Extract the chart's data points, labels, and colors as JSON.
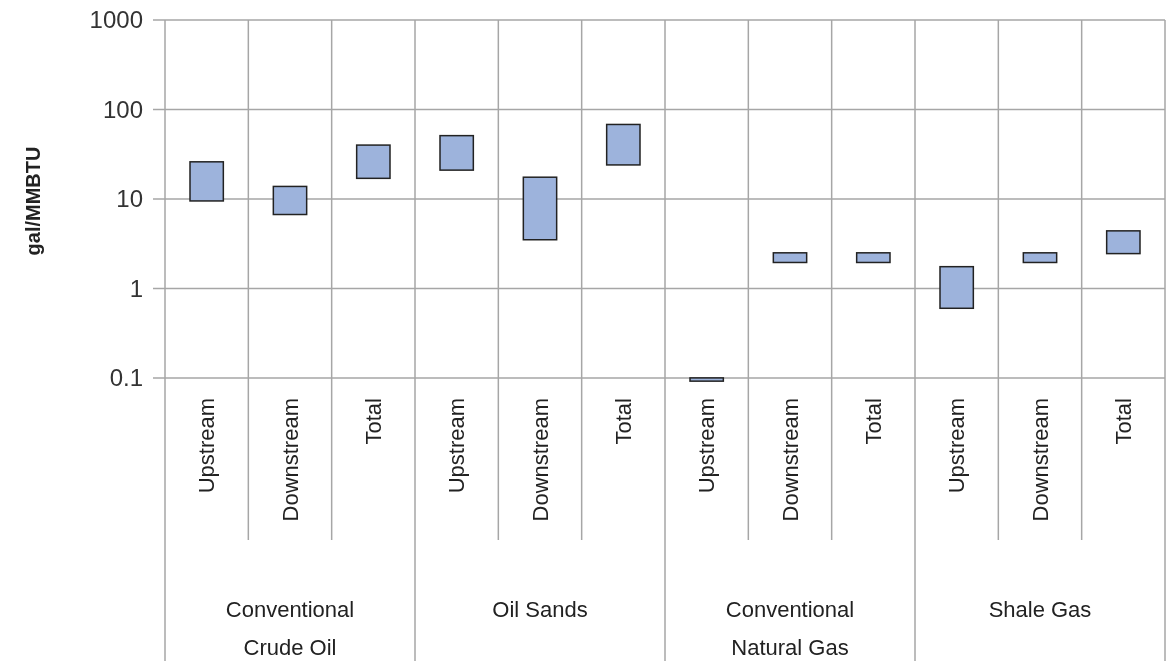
{
  "chart_data": {
    "type": "bar",
    "ylabel": "gal/MMBTU",
    "categories": [
      "Upstream",
      "Downstream",
      "Total",
      "Upstream",
      "Downstream",
      "Total",
      "Upstream",
      "Downstream",
      "Total",
      "Upstream",
      "Downstream",
      "Total"
    ],
    "base": [
      9.5,
      6.7,
      17,
      21,
      3.5,
      24,
      0.092,
      1.95,
      1.95,
      0.6,
      1.95,
      2.45
    ],
    "values": [
      16.5,
      7.1,
      23,
      30,
      14,
      44,
      0.008,
      0.55,
      0.55,
      1.15,
      0.55,
      1.95
    ],
    "color": "#9db3dc",
    "log": true,
    "ylim": [
      0.09,
      1000
    ],
    "yticks": [
      0.1,
      1,
      10,
      100,
      1000
    ],
    "grid": true,
    "annotations": [
      "Conventional Crude Oil",
      "Oil Sands",
      "Conventional Natural Gas",
      "Shale Gas"
    ]
  }
}
